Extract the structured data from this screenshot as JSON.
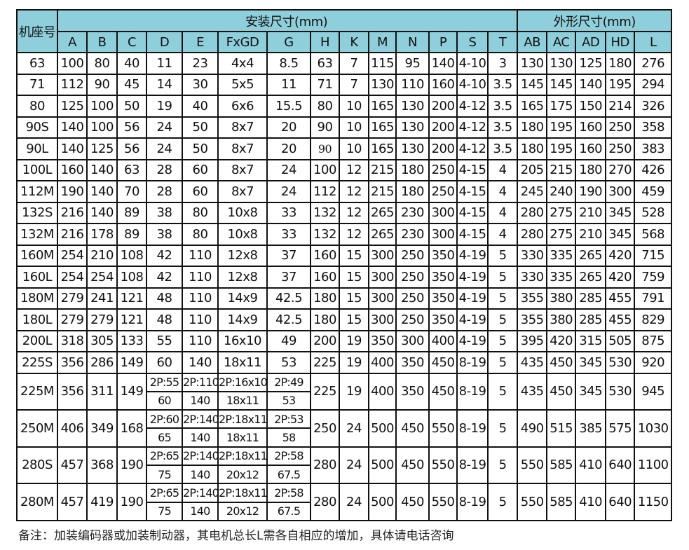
{
  "header": {
    "frame_label": "机座号",
    "group_install": "安装尺寸(mm)",
    "group_outline": "外形尺寸(mm)",
    "install_columns": [
      "A",
      "B",
      "C",
      "D",
      "E",
      "FxGD",
      "G",
      "H",
      "K",
      "M",
      "N",
      "P",
      "S",
      "T"
    ],
    "outline_columns": [
      "AB",
      "AC",
      "AD",
      "HD",
      "L"
    ]
  },
  "header_color": "#8fcfdc",
  "rows": [
    {
      "frame": "63",
      "install": [
        "100",
        "80",
        "40",
        "11",
        "23",
        "4x4",
        "8.5",
        "63",
        "7",
        "115",
        "95",
        "140",
        "4-10",
        "3"
      ],
      "outline": [
        "130",
        "130",
        "125",
        "180",
        "276"
      ]
    },
    {
      "frame": "71",
      "install": [
        "112",
        "90",
        "45",
        "14",
        "30",
        "5x5",
        "11",
        "71",
        "7",
        "130",
        "110",
        "160",
        "4-10",
        "3.5"
      ],
      "outline": [
        "145",
        "145",
        "140",
        "195",
        "294"
      ]
    },
    {
      "frame": "80",
      "install": [
        "125",
        "100",
        "50",
        "19",
        "40",
        "6x6",
        "15.5",
        "80",
        "10",
        "165",
        "130",
        "200",
        "4-12",
        "3.5"
      ],
      "outline": [
        "165",
        "175",
        "150",
        "214",
        "326"
      ]
    },
    {
      "frame": "90S",
      "install": [
        "140",
        "100",
        "56",
        "24",
        "50",
        "8x7",
        "20",
        "90",
        "10",
        "165",
        "130",
        "200",
        "4-12",
        "3.5"
      ],
      "outline": [
        "180",
        "195",
        "160",
        "250",
        "358"
      ]
    },
    {
      "frame": "90L",
      "install": [
        "140",
        "125",
        "56",
        "24",
        "50",
        "8x7",
        "20",
        "90",
        "10",
        "165",
        "130",
        "200",
        "4-12",
        "3.5"
      ],
      "outline": [
        "180",
        "195",
        "160",
        "250",
        "383"
      ]
    },
    {
      "frame": "100L",
      "install": [
        "160",
        "140",
        "63",
        "28",
        "60",
        "8x7",
        "24",
        "100",
        "12",
        "215",
        "180",
        "250",
        "4-15",
        "4"
      ],
      "outline": [
        "205",
        "215",
        "180",
        "270",
        "426"
      ]
    },
    {
      "frame": "112M",
      "install": [
        "190",
        "140",
        "70",
        "28",
        "60",
        "8x7",
        "24",
        "112",
        "12",
        "215",
        "180",
        "250",
        "4-15",
        "4"
      ],
      "outline": [
        "245",
        "240",
        "190",
        "300",
        "459"
      ]
    },
    {
      "frame": "132S",
      "install": [
        "216",
        "140",
        "89",
        "38",
        "80",
        "10x8",
        "33",
        "132",
        "12",
        "265",
        "230",
        "300",
        "4-15",
        "4"
      ],
      "outline": [
        "280",
        "275",
        "210",
        "345",
        "528"
      ]
    },
    {
      "frame": "132M",
      "install": [
        "216",
        "178",
        "89",
        "38",
        "80",
        "10x8",
        "33",
        "132",
        "12",
        "265",
        "230",
        "300",
        "4-15",
        "4"
      ],
      "outline": [
        "280",
        "275",
        "210",
        "345",
        "568"
      ]
    },
    {
      "frame": "160M",
      "install": [
        "254",
        "210",
        "108",
        "42",
        "110",
        "12x8",
        "37",
        "160",
        "15",
        "300",
        "250",
        "350",
        "4-19",
        "5"
      ],
      "outline": [
        "330",
        "335",
        "265",
        "420",
        "715"
      ]
    },
    {
      "frame": "160L",
      "install": [
        "254",
        "254",
        "108",
        "42",
        "110",
        "12x8",
        "37",
        "160",
        "15",
        "300",
        "250",
        "350",
        "4-19",
        "5"
      ],
      "outline": [
        "330",
        "335",
        "265",
        "420",
        "759"
      ]
    },
    {
      "frame": "180M",
      "install": [
        "279",
        "241",
        "121",
        "48",
        "110",
        "14x9",
        "42.5",
        "180",
        "15",
        "300",
        "250",
        "350",
        "4-19",
        "5"
      ],
      "outline": [
        "355",
        "380",
        "285",
        "455",
        "791"
      ]
    },
    {
      "frame": "180L",
      "install": [
        "279",
        "279",
        "121",
        "48",
        "110",
        "14x9",
        "42.5",
        "180",
        "15",
        "300",
        "250",
        "350",
        "4-19",
        "5"
      ],
      "outline": [
        "355",
        "380",
        "285",
        "455",
        "829"
      ]
    },
    {
      "frame": "200L",
      "install": [
        "318",
        "305",
        "133",
        "55",
        "110",
        "16x10",
        "49",
        "200",
        "19",
        "350",
        "300",
        "400",
        "4-19",
        "5"
      ],
      "outline": [
        "395",
        "420",
        "315",
        "505",
        "875"
      ]
    },
    {
      "frame": "225S",
      "install": [
        "356",
        "286",
        "149",
        "60",
        "140",
        "18x11",
        "53",
        "225",
        "19",
        "400",
        "350",
        "450",
        "8-19",
        "5"
      ],
      "outline": [
        "435",
        "450",
        "345",
        "530",
        "920"
      ]
    },
    {
      "frame": "225M",
      "install": [
        "356",
        "311",
        "149",
        {
          "p2": "2P:55",
          "v": "60"
        },
        {
          "p2": "2P:110",
          "v": "140"
        },
        {
          "p2": "2P:16x10",
          "v": "18x11"
        },
        {
          "p2": "2P:49",
          "v": "53"
        },
        "225",
        "19",
        "400",
        "350",
        "450",
        "8-19",
        "5"
      ],
      "outline": [
        "435",
        "450",
        "345",
        "530",
        "945"
      ]
    },
    {
      "frame": "250M",
      "install": [
        "406",
        "349",
        "168",
        {
          "p2": "2P:60",
          "v": "65"
        },
        {
          "p2": "2P:140",
          "v": "140"
        },
        {
          "p2": "2P:18x11",
          "v": "18x11"
        },
        {
          "p2": "2P:53",
          "v": "58"
        },
        "250",
        "24",
        "500",
        "450",
        "550",
        "8-19",
        "5"
      ],
      "outline": [
        "490",
        "515",
        "385",
        "575",
        "1030"
      ]
    },
    {
      "frame": "280S",
      "install": [
        "457",
        "368",
        "190",
        {
          "p2": "2P:65",
          "v": "75"
        },
        {
          "p2": "2P:140",
          "v": "140"
        },
        {
          "p2": "2P:18x11",
          "v": "20x12"
        },
        {
          "p2": "2P:58",
          "v": "67.5"
        },
        "280",
        "24",
        "500",
        "450",
        "550",
        "8-19",
        "5"
      ],
      "outline": [
        "550",
        "585",
        "410",
        "640",
        "1100"
      ]
    },
    {
      "frame": "280M",
      "install": [
        "457",
        "419",
        "190",
        {
          "p2": "2P:65",
          "v": "75"
        },
        {
          "p2": "2P:140",
          "v": "140"
        },
        {
          "p2": "2P:18x11",
          "v": "20x12"
        },
        {
          "p2": "2P:58",
          "v": "67.5"
        },
        "280",
        "24",
        "500",
        "450",
        "550",
        "8-19",
        "5"
      ],
      "outline": [
        "550",
        "585",
        "410",
        "640",
        "1150"
      ]
    }
  ],
  "note": "备注：加装编码器或加装制动器，其电机总长L需各自相应的增加，具体请电话咨询"
}
